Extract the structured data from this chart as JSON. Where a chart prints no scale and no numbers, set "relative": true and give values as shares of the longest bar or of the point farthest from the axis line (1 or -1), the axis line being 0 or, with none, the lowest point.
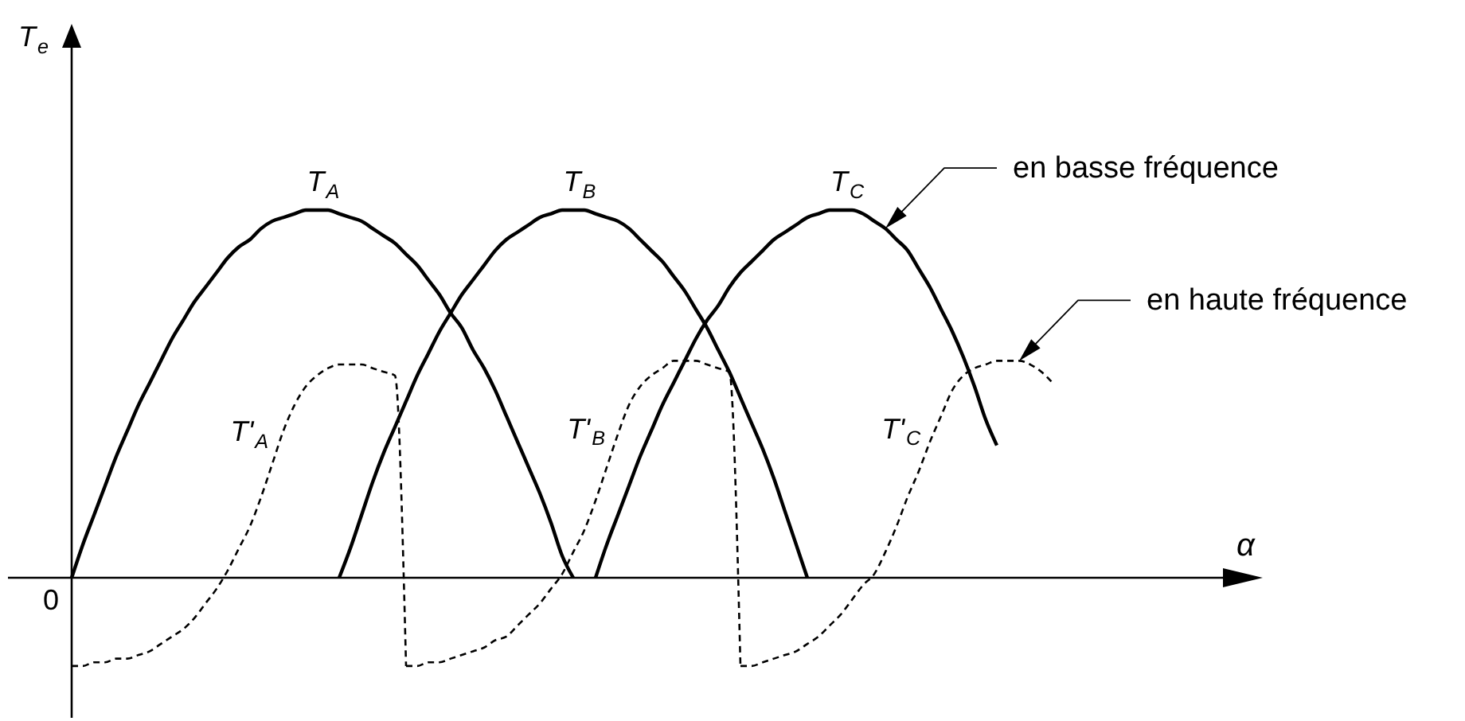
{
  "chart_data": {
    "type": "line",
    "relative": true,
    "line_style": "solid",
    "annotations": [
      "0",
      "T$_{e}$",
      "α",
      "en basse fréquence",
      "en haute fréquence"
    ],
    "categories": [
      null,
      null,
      null,
      null,
      null,
      null,
      null,
      null,
      null,
      null,
      null,
      null,
      null,
      null,
      null,
      null,
      null,
      null,
      null,
      null,
      null,
      null,
      null,
      null,
      null,
      null,
      null,
      null,
      null,
      null,
      null,
      null,
      null,
      null,
      null,
      null,
      null,
      null,
      null,
      null,
      null,
      null,
      null,
      null,
      null,
      null,
      null,
      null,
      null,
      null,
      null,
      null,
      null,
      null,
      null,
      null,
      null,
      null,
      null,
      null,
      null,
      null,
      null,
      null,
      null,
      null,
      null,
      null,
      null,
      null,
      null,
      null,
      null,
      null,
      null,
      null,
      null,
      null,
      null,
      null,
      null,
      null,
      null,
      null,
      null,
      null,
      null,
      null,
      null
    ],
    "series": [
      {
        "name": "T$_{A}$",
        "color": "#000000",
        "values": [
          0,
          0.09,
          0.17,
          0.25,
          0.33,
          0.4,
          0.47,
          0.53,
          0.59,
          0.65,
          0.7,
          0.75,
          0.79,
          0.83,
          0.87,
          0.9,
          0.92,
          0.95,
          0.97,
          0.98,
          0.99,
          1,
          1,
          1,
          0.99,
          0.98,
          0.97,
          0.95,
          0.93,
          0.91,
          0.88,
          0.85,
          0.81,
          0.77,
          0.72,
          0.68,
          0.62,
          0.57,
          0.51,
          0.44,
          0.37,
          0.3,
          0.23,
          0.15,
          0.06,
          0,
          null,
          null,
          null,
          null,
          null,
          null,
          null,
          null,
          null,
          null,
          null,
          null,
          null,
          null,
          null,
          null,
          null,
          null,
          null,
          null,
          null,
          null,
          null,
          null,
          null,
          null,
          null,
          null,
          null,
          null,
          null,
          null,
          null,
          null,
          null,
          null,
          null,
          null,
          null,
          null,
          null,
          null,
          null
        ]
      },
      {
        "name": "T$_{B}$",
        "color": "#000000",
        "values": [
          null,
          null,
          null,
          null,
          null,
          null,
          null,
          null,
          null,
          null,
          null,
          null,
          null,
          null,
          null,
          null,
          null,
          null,
          null,
          null,
          null,
          null,
          null,
          null,
          0,
          0.08,
          0.17,
          0.26,
          0.34,
          0.41,
          0.48,
          0.55,
          0.61,
          0.67,
          0.72,
          0.77,
          0.81,
          0.85,
          0.89,
          0.92,
          0.94,
          0.96,
          0.98,
          0.99,
          1,
          1,
          1,
          0.99,
          0.98,
          0.97,
          0.95,
          0.92,
          0.89,
          0.86,
          0.82,
          0.78,
          0.73,
          0.68,
          0.62,
          0.56,
          0.49,
          0.42,
          0.35,
          0.27,
          0.18,
          0.09,
          0,
          null,
          null,
          null,
          null,
          null,
          null,
          null,
          null,
          null,
          null,
          null,
          null,
          null,
          null,
          null,
          null,
          null,
          null,
          null,
          null,
          null,
          null
        ]
      },
      {
        "name": "T$_{C}$",
        "color": "#000000",
        "values": [
          null,
          null,
          null,
          null,
          null,
          null,
          null,
          null,
          null,
          null,
          null,
          null,
          null,
          null,
          null,
          null,
          null,
          null,
          null,
          null,
          null,
          null,
          null,
          null,
          null,
          null,
          null,
          null,
          null,
          null,
          null,
          null,
          null,
          null,
          null,
          null,
          null,
          null,
          null,
          null,
          null,
          null,
          null,
          null,
          null,
          null,
          null,
          0,
          0.09,
          0.17,
          0.25,
          0.33,
          0.4,
          0.47,
          0.53,
          0.59,
          0.65,
          0.7,
          0.74,
          0.79,
          0.83,
          0.86,
          0.89,
          0.92,
          0.94,
          0.96,
          0.98,
          0.99,
          1,
          1,
          1,
          0.99,
          0.97,
          0.95,
          0.92,
          0.89,
          0.84,
          0.79,
          0.73,
          0.67,
          0.6,
          0.52,
          0.43,
          0.36,
          null,
          null,
          null,
          null,
          null
        ]
      },
      {
        "name": "T'$_{A}$",
        "color": "#000000",
        "line_style": "dashed",
        "values": [
          -0.24,
          -0.24,
          -0.23,
          -0.23,
          -0.22,
          -0.22,
          -0.21,
          -0.2,
          -0.18,
          -0.16,
          -0.14,
          -0.11,
          -0.07,
          -0.03,
          0.02,
          0.08,
          0.14,
          0.22,
          0.31,
          0.4,
          0.47,
          0.52,
          0.55,
          0.57,
          0.58,
          0.58,
          0.58,
          0.57,
          0.56,
          0.55,
          -0.24,
          null,
          null,
          null,
          null,
          null,
          null,
          null,
          null,
          null,
          null,
          null,
          null,
          null,
          null,
          null,
          null,
          null,
          null,
          null,
          null,
          null,
          null,
          null,
          null,
          null,
          null,
          null,
          null,
          null,
          null,
          null,
          null,
          null,
          null,
          null,
          null,
          null,
          null,
          null,
          null,
          null,
          null,
          null,
          null,
          null,
          null,
          null,
          null,
          null,
          null,
          null,
          null,
          null,
          null,
          null,
          null,
          null,
          null
        ]
      },
      {
        "name": "T'$_{B}$",
        "color": "#000000",
        "line_style": "dashed",
        "values": [
          null,
          null,
          null,
          null,
          null,
          null,
          null,
          null,
          null,
          null,
          null,
          null,
          null,
          null,
          null,
          null,
          null,
          null,
          null,
          null,
          null,
          null,
          null,
          null,
          null,
          null,
          null,
          null,
          null,
          null,
          -0.24,
          -0.24,
          -0.23,
          -0.23,
          -0.22,
          -0.21,
          -0.2,
          -0.19,
          -0.17,
          -0.16,
          -0.13,
          -0.1,
          -0.07,
          -0.03,
          0.01,
          0.07,
          0.13,
          0.21,
          0.3,
          0.39,
          0.47,
          0.52,
          0.55,
          0.57,
          0.59,
          0.59,
          0.59,
          0.58,
          0.57,
          0.56,
          -0.24,
          null,
          null,
          null,
          null,
          null,
          null,
          null,
          null,
          null,
          null,
          null,
          null,
          null,
          null,
          null,
          null,
          null,
          null,
          null,
          null,
          null,
          null,
          null,
          null,
          null,
          null,
          null,
          null
        ]
      },
      {
        "name": "T'$_{C}$",
        "color": "#000000",
        "line_style": "dashed",
        "values": [
          null,
          null,
          null,
          null,
          null,
          null,
          null,
          null,
          null,
          null,
          null,
          null,
          null,
          null,
          null,
          null,
          null,
          null,
          null,
          null,
          null,
          null,
          null,
          null,
          null,
          null,
          null,
          null,
          null,
          null,
          null,
          null,
          null,
          null,
          null,
          null,
          null,
          null,
          null,
          null,
          null,
          null,
          null,
          null,
          null,
          null,
          null,
          null,
          null,
          null,
          null,
          null,
          null,
          null,
          null,
          null,
          null,
          null,
          null,
          null,
          -0.24,
          -0.24,
          -0.23,
          -0.22,
          -0.21,
          -0.2,
          -0.18,
          -0.16,
          -0.13,
          -0.1,
          -0.06,
          -0.02,
          0.01,
          0.07,
          0.14,
          0.22,
          0.29,
          0.37,
          0.44,
          0.51,
          0.55,
          0.57,
          0.58,
          0.59,
          0.59,
          0.59,
          0.58,
          0.56,
          0.53
        ]
      }
    ]
  }
}
